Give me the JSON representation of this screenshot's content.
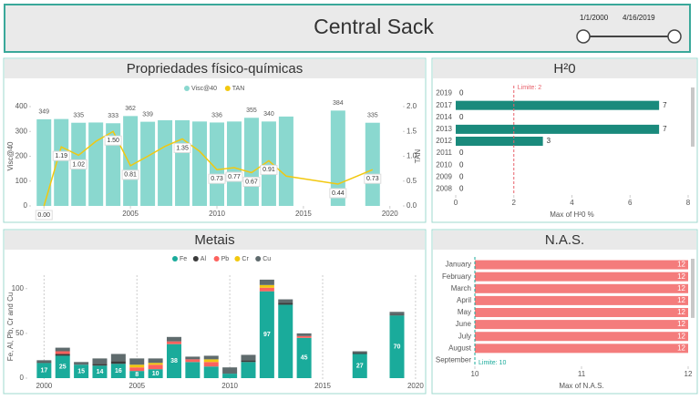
{
  "header": {
    "title": "Central Sack",
    "date_start": "1/1/2000",
    "date_end": "4/16/2019"
  },
  "chart_data": [
    {
      "type": "bar_line",
      "title": "Propriedades físico-químicas",
      "x": [
        2000,
        2001,
        2002,
        2003,
        2004,
        2005,
        2006,
        2007,
        2008,
        2009,
        2010,
        2011,
        2012,
        2013,
        2014,
        2017,
        2019
      ],
      "series": [
        {
          "name": "Visc@40",
          "color": "#8ad8cf",
          "mark": "bar",
          "values": [
            349,
            350,
            335,
            336,
            333,
            362,
            339,
            345,
            345,
            340,
            336,
            340,
            355,
            340,
            360,
            384,
            335
          ],
          "value_labels": [
            "349",
            null,
            "335",
            null,
            "333",
            "362",
            "339",
            null,
            null,
            null,
            "336",
            null,
            "355",
            "340",
            null,
            "384",
            "335"
          ]
        },
        {
          "name": "TAN",
          "color": "#f2c80f",
          "mark": "line",
          "axis": "y2",
          "values": [
            0,
            1.19,
            1.02,
            1.3,
            1.5,
            0.81,
            1.0,
            1.2,
            1.35,
            1.1,
            0.73,
            0.77,
            0.67,
            0.91,
            0.6,
            0.44,
            0.73
          ],
          "value_labels": [
            "0.00",
            "1.19",
            "1.02",
            null,
            "1.50",
            "0.81",
            null,
            null,
            "1.35",
            null,
            "0.73",
            "0.77",
            "0.67",
            "0.91",
            null,
            "0.44",
            "0.73"
          ]
        }
      ],
      "xlim": [
        1999.25,
        2020.75
      ],
      "xticks": [
        2000,
        2005,
        2010,
        2015,
        2020
      ],
      "ylim": [
        0,
        400
      ],
      "yticks": [
        0,
        100,
        200,
        300,
        400
      ],
      "y2lim": [
        0,
        2
      ],
      "y2ticks": [
        {
          "value": 0,
          "label": "0.0"
        },
        {
          "value": 0.5,
          "label": "0.5"
        },
        {
          "value": 1,
          "label": "1.0"
        },
        {
          "value": 1.5,
          "label": "1.5"
        },
        {
          "value": 2,
          "label": "2.0"
        }
      ],
      "ylabel": "Visc@40",
      "y2label": "TAN",
      "legend": "top"
    },
    {
      "type": "hbar",
      "title": "H²0",
      "categories": [
        "2019",
        "2017",
        "2014",
        "2013",
        "2012",
        "2011",
        "2010",
        "2009",
        "2008"
      ],
      "values": [
        0,
        7,
        0,
        7,
        3,
        0,
        0,
        0,
        0
      ],
      "color": "#1a8a7c",
      "xlim": [
        0,
        8
      ],
      "xticks": [
        0,
        2,
        4,
        6,
        8
      ],
      "xlabel": "Max of H²0 %",
      "reference_line": {
        "value": 2,
        "label": "Limite: 2",
        "color": "#e8606a"
      }
    },
    {
      "type": "stacked_bar",
      "title": "Metais",
      "x": [
        2000,
        2001,
        2002,
        2003,
        2004,
        2005,
        2006,
        2007,
        2008,
        2009,
        2010,
        2011,
        2012,
        2013,
        2014,
        2017,
        2019
      ],
      "series": [
        {
          "name": "Fe",
          "color": "#1aab9b",
          "values": [
            17,
            25,
            15,
            14,
            16,
            8,
            10,
            38,
            18,
            13,
            5,
            18,
            97,
            82,
            45,
            27,
            70
          ],
          "value_labels": [
            "17",
            "25",
            "15",
            "14",
            "16",
            "8",
            "10",
            "38",
            null,
            null,
            null,
            null,
            "97",
            null,
            "45",
            "27",
            "70"
          ]
        },
        {
          "name": "Al",
          "color": "#3b3b3b",
          "values": [
            1,
            2,
            0,
            2,
            3,
            0,
            0,
            0,
            0,
            0,
            0,
            2,
            0,
            2,
            0,
            1,
            1
          ]
        },
        {
          "name": "Pb",
          "color": "#fd625e",
          "values": [
            0,
            3,
            0,
            0,
            0,
            4,
            5,
            3,
            3,
            5,
            0,
            0,
            4,
            0,
            2,
            0,
            0
          ]
        },
        {
          "name": "Cr",
          "color": "#f2c80f",
          "values": [
            0,
            0,
            0,
            0,
            0,
            3,
            2,
            0,
            0,
            3,
            0,
            0,
            3,
            0,
            0,
            0,
            0
          ]
        },
        {
          "name": "Cu",
          "color": "#5f6b6d",
          "values": [
            2,
            4,
            3,
            6,
            8,
            7,
            5,
            5,
            3,
            4,
            7,
            6,
            6,
            4,
            3,
            2,
            3
          ]
        }
      ],
      "xlim": [
        1999.1,
        2020.3
      ],
      "xticks": [
        2000,
        2005,
        2010,
        2015,
        2020
      ],
      "ylim": [
        0,
        115
      ],
      "yticks": [
        0,
        50,
        100
      ],
      "ylabel": "Fe, Al, Pb, Cr and Cu",
      "legend": "top",
      "grid": true
    },
    {
      "type": "hbar",
      "title": "N.A.S.",
      "categories": [
        "January",
        "February",
        "March",
        "April",
        "May",
        "June",
        "July",
        "August",
        "September"
      ],
      "values": [
        12,
        12,
        12,
        12,
        12,
        12,
        12,
        12,
        null
      ],
      "color": "#f47c7c",
      "xlim": [
        10,
        12
      ],
      "xticks": [
        10,
        11,
        12
      ],
      "xlabel": "Max of N.A.S.",
      "inside_labels": true,
      "reference_line": {
        "value": 10,
        "label": "Limite: 10",
        "color": "#1aab9b"
      }
    }
  ]
}
